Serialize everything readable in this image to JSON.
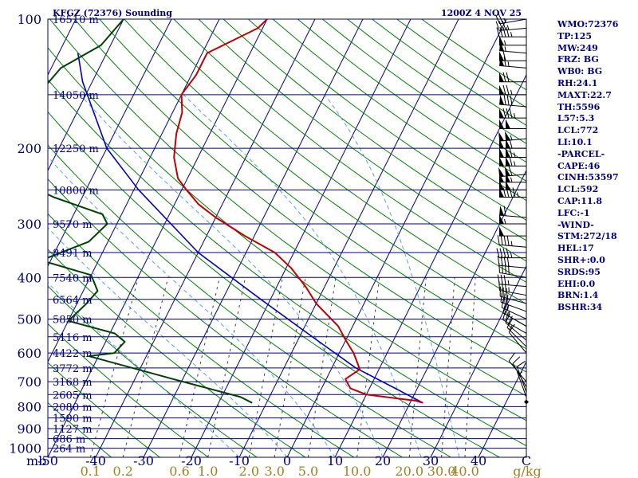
{
  "title_left": "KFGZ (72376) Sounding",
  "title_right": "1200Z  4 NOV 25",
  "stats": [
    "WMO:72376",
    "TP:125",
    "MW:249",
    "FRZ: BG",
    "WB0: BG",
    "RH:24.1",
    "MAXT:22.7",
    "TH:5596",
    "L57:5.3",
    "LCL:772",
    "LI:10.1",
    "-PARCEL-",
    "CAPE:46",
    "CINH:53597",
    "LCL:592",
    "CAP:11.8",
    "LFC:-1",
    "-WIND-",
    "STM:272/18",
    "HEL:17",
    "SHR+:0.0",
    "SRDS:95",
    "EHI:0.0",
    "BRN:1.4",
    "BSHR:34"
  ],
  "colors": {
    "isobar": "#000080",
    "isotherm": "#000080",
    "dry_adiabat": "#008000",
    "moist_adiabat": "#5aa0e0",
    "mixing_ratio": "#404040",
    "temperature": "#c00000",
    "dewpoint": "#004000",
    "parcel": "#0000c0",
    "wind_barb": "#000000"
  },
  "chart_data": {
    "type": "line",
    "diagram": "skew-T log-P",
    "pressure_levels": [
      {
        "p": 100,
        "p_label": "100",
        "h_label": "16510 m"
      },
      {
        "p": 150,
        "p_label": "",
        "h_label": "14050 m"
      },
      {
        "p": 200,
        "p_label": "200",
        "h_label": "12250 m"
      },
      {
        "p": 250,
        "p_label": "",
        "h_label": "10800 m"
      },
      {
        "p": 300,
        "p_label": "300",
        "h_label": "9570 m"
      },
      {
        "p": 350,
        "p_label": "",
        "h_label": "8491 m"
      },
      {
        "p": 400,
        "p_label": "400",
        "h_label": "7540 m"
      },
      {
        "p": 450,
        "p_label": "",
        "h_label": "6564 m"
      },
      {
        "p": 500,
        "p_label": "500",
        "h_label": "5850 m"
      },
      {
        "p": 550,
        "p_label": "",
        "h_label": "5116 m"
      },
      {
        "p": 600,
        "p_label": "600",
        "h_label": "4422 m"
      },
      {
        "p": 650,
        "p_label": "",
        "h_label": "3772 m"
      },
      {
        "p": 700,
        "p_label": "700",
        "h_label": "3168 m"
      },
      {
        "p": 750,
        "p_label": "",
        "h_label": "2605 m"
      },
      {
        "p": 800,
        "p_label": "800",
        "h_label": "2080 m"
      },
      {
        "p": 850,
        "p_label": "",
        "h_label": "1590 m"
      },
      {
        "p": 900,
        "p_label": "900",
        "h_label": "1127 m"
      },
      {
        "p": 950,
        "p_label": "",
        "h_label": "686 m"
      },
      {
        "p": 1000,
        "p_label": "1000",
        "h_label": "264 m"
      }
    ],
    "pressure_unit": "mb",
    "temperature_ticks": [
      "-50",
      "-40",
      "-30",
      "-20",
      "-10",
      "0",
      "10",
      "20",
      "30",
      "40",
      "C"
    ],
    "mixing_ratio_ticks": [
      "0.1",
      "0.2",
      "0.6",
      "1.0",
      "2.0",
      "3.0",
      "5.0",
      "10.0",
      "20.0",
      "30.0",
      "40.0",
      "g/kg"
    ],
    "mixing_ratio_values": [
      0.1,
      0.2,
      0.6,
      1.0,
      2.0,
      3.0,
      5.0,
      10.0,
      20.0,
      30.0,
      40.0
    ],
    "p_range": [
      100,
      1050
    ],
    "t_range_at_bottom": [
      -50,
      50
    ],
    "temperature_profile": [
      [
        100,
        -50
      ],
      [
        105,
        -51
      ],
      [
        120,
        -59
      ],
      [
        135,
        -59
      ],
      [
        150,
        -60
      ],
      [
        165,
        -58
      ],
      [
        185,
        -57
      ],
      [
        210,
        -55
      ],
      [
        235,
        -52
      ],
      [
        250,
        -49
      ],
      [
        270,
        -45
      ],
      [
        290,
        -40
      ],
      [
        320,
        -32
      ],
      [
        350,
        -24
      ],
      [
        380,
        -19
      ],
      [
        420,
        -14
      ],
      [
        460,
        -10
      ],
      [
        520,
        -3
      ],
      [
        560,
        0
      ],
      [
        600,
        3
      ],
      [
        655,
        6
      ],
      [
        690,
        4
      ],
      [
        725,
        6
      ],
      [
        750,
        10
      ],
      [
        775,
        21
      ],
      [
        784,
        22.7
      ]
    ],
    "dewpoint_profile": [
      [
        100,
        -80
      ],
      [
        115,
        -82
      ],
      [
        130,
        -88
      ],
      [
        150,
        -90
      ],
      [
        175,
        -92
      ],
      [
        210,
        -88
      ],
      [
        240,
        -84
      ],
      [
        260,
        -76
      ],
      [
        285,
        -64
      ],
      [
        300,
        -62
      ],
      [
        330,
        -64
      ],
      [
        365,
        -72
      ],
      [
        395,
        -60
      ],
      [
        430,
        -57
      ],
      [
        460,
        -58
      ],
      [
        505,
        -60
      ],
      [
        540,
        -49
      ],
      [
        565,
        -46
      ],
      [
        600,
        -47
      ],
      [
        610,
        -52
      ],
      [
        690,
        -32
      ],
      [
        760,
        -16
      ],
      [
        784,
        -13
      ]
    ],
    "parcel_profile": [
      [
        784,
        22.7
      ],
      [
        730,
        16
      ],
      [
        650,
        5
      ],
      [
        560,
        -6
      ],
      [
        450,
        -22
      ],
      [
        350,
        -40
      ],
      [
        250,
        -59
      ],
      [
        200,
        -70
      ],
      [
        140,
        -82
      ],
      [
        120,
        -86
      ]
    ],
    "wind_barbs": [
      {
        "p": 100,
        "dir": 260,
        "spd": 25
      },
      {
        "p": 105,
        "dir": 265,
        "spd": 35
      },
      {
        "p": 110,
        "dir": 270,
        "spd": 45
      },
      {
        "p": 115,
        "dir": 270,
        "spd": 55
      },
      {
        "p": 120,
        "dir": 275,
        "spd": 55
      },
      {
        "p": 125,
        "dir": 270,
        "spd": 60
      },
      {
        "p": 130,
        "dir": 275,
        "spd": 65
      },
      {
        "p": 140,
        "dir": 270,
        "spd": 70
      },
      {
        "p": 150,
        "dir": 270,
        "spd": 75
      },
      {
        "p": 160,
        "dir": 275,
        "spd": 80
      },
      {
        "p": 170,
        "dir": 270,
        "spd": 85
      },
      {
        "p": 180,
        "dir": 270,
        "spd": 100
      },
      {
        "p": 190,
        "dir": 265,
        "spd": 105
      },
      {
        "p": 200,
        "dir": 270,
        "spd": 110
      },
      {
        "p": 210,
        "dir": 270,
        "spd": 115
      },
      {
        "p": 220,
        "dir": 270,
        "spd": 115
      },
      {
        "p": 230,
        "dir": 265,
        "spd": 110
      },
      {
        "p": 240,
        "dir": 270,
        "spd": 105
      },
      {
        "p": 250,
        "dir": 270,
        "spd": 100
      },
      {
        "p": 260,
        "dir": 270,
        "spd": 95
      },
      {
        "p": 290,
        "dir": 275,
        "spd": 60
      },
      {
        "p": 300,
        "dir": 270,
        "spd": 55
      },
      {
        "p": 320,
        "dir": 270,
        "spd": 50
      },
      {
        "p": 340,
        "dir": 275,
        "spd": 45
      },
      {
        "p": 360,
        "dir": 270,
        "spd": 45
      },
      {
        "p": 380,
        "dir": 275,
        "spd": 40
      },
      {
        "p": 400,
        "dir": 280,
        "spd": 40
      },
      {
        "p": 420,
        "dir": 275,
        "spd": 35
      },
      {
        "p": 440,
        "dir": 280,
        "spd": 35
      },
      {
        "p": 460,
        "dir": 285,
        "spd": 30
      },
      {
        "p": 480,
        "dir": 290,
        "spd": 30
      },
      {
        "p": 500,
        "dir": 295,
        "spd": 25
      },
      {
        "p": 520,
        "dir": 300,
        "spd": 25
      },
      {
        "p": 540,
        "dir": 300,
        "spd": 20
      },
      {
        "p": 560,
        "dir": 310,
        "spd": 20
      },
      {
        "p": 580,
        "dir": 315,
        "spd": 15
      },
      {
        "p": 600,
        "dir": 320,
        "spd": 10
      },
      {
        "p": 700,
        "dir": 320,
        "spd": 10
      },
      {
        "p": 720,
        "dir": 330,
        "spd": 10
      },
      {
        "p": 740,
        "dir": 340,
        "spd": 10
      },
      {
        "p": 760,
        "dir": 340,
        "spd": 5
      },
      {
        "p": 780,
        "dir": 0,
        "spd": 0
      }
    ]
  }
}
